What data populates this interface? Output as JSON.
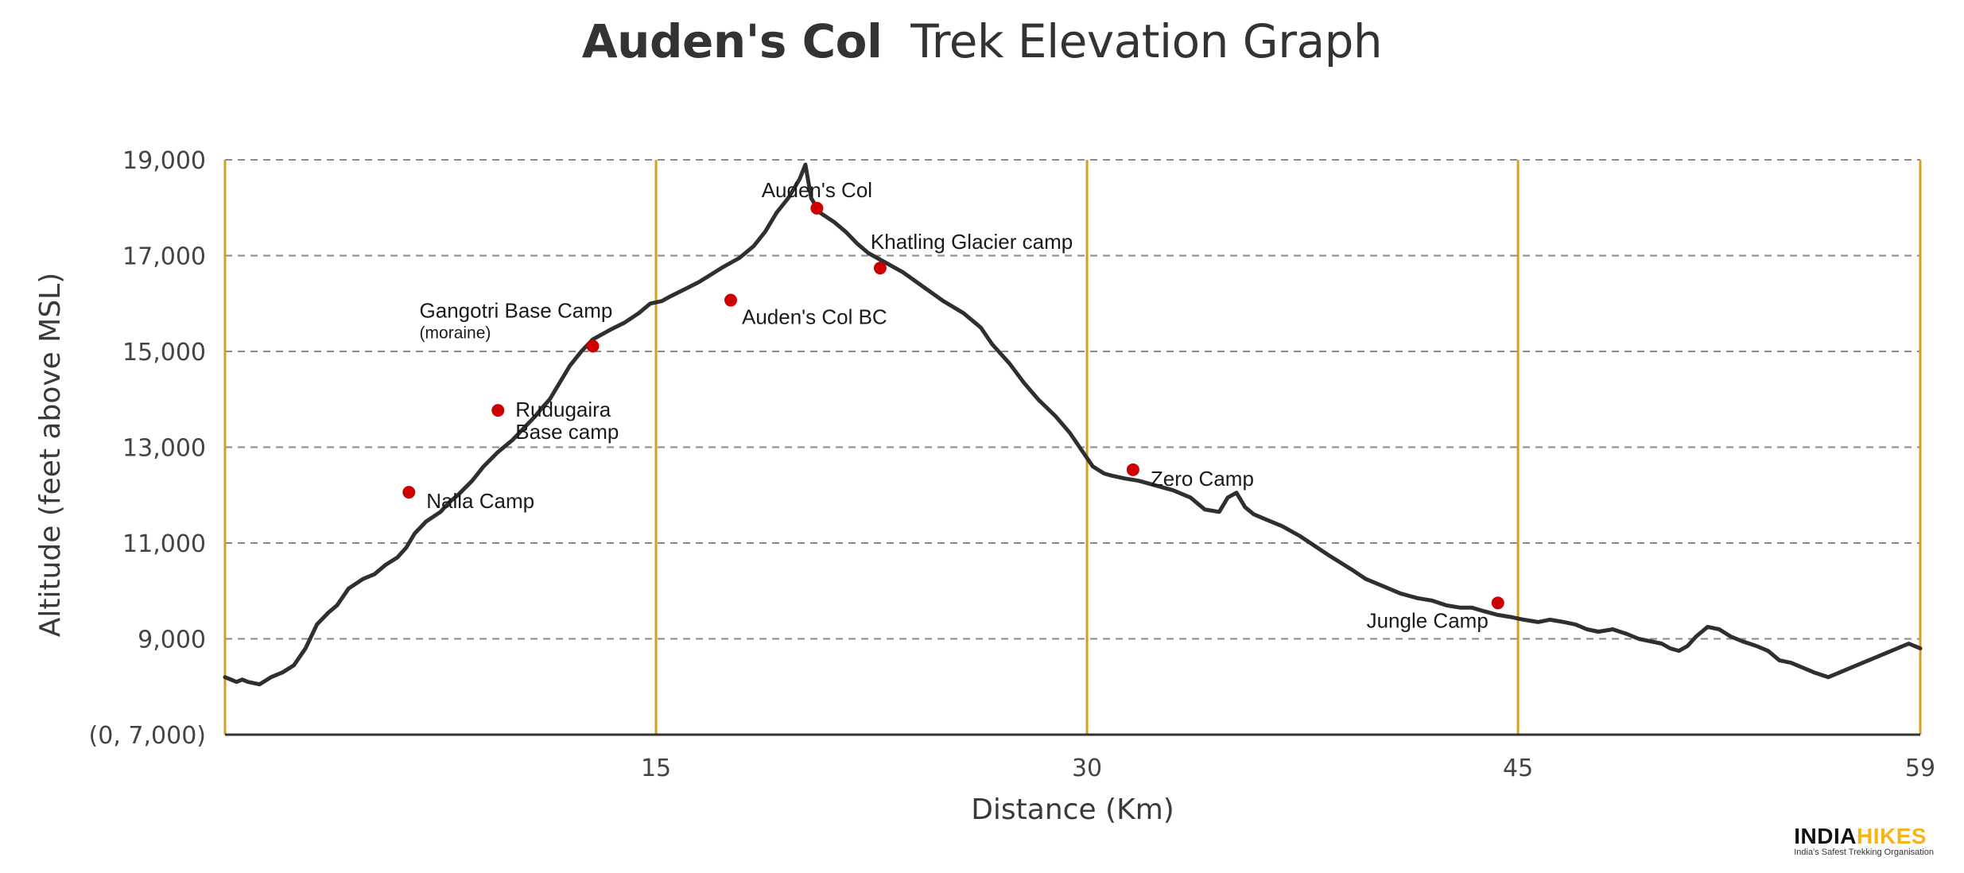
{
  "title": {
    "bold": "Auden's Col",
    "rest": "Trek Elevation Graph"
  },
  "chart_data": {
    "type": "line",
    "title": "Auden's Col  Trek Elevation Graph",
    "xlabel": "Distance (Km)",
    "ylabel": "Altitude (feet above MSL)",
    "xlim": [
      0,
      59
    ],
    "ylim": [
      7000,
      19000
    ],
    "x_ticks": [
      {
        "value": 15,
        "label": "15"
      },
      {
        "value": 30,
        "label": "30"
      },
      {
        "value": 45,
        "label": "45"
      },
      {
        "value": 59,
        "label": "59"
      }
    ],
    "y_ticks": [
      {
        "value": 7000,
        "label": "(0, 7,000)"
      },
      {
        "value": 9000,
        "label": "9,000"
      },
      {
        "value": 11000,
        "label": "11,000"
      },
      {
        "value": 13000,
        "label": "13,000"
      },
      {
        "value": 15000,
        "label": "15,000"
      },
      {
        "value": 17000,
        "label": "17,000"
      },
      {
        "value": 19000,
        "label": "19,000"
      }
    ],
    "grid": {
      "horizontal": "dashed",
      "vertical_at": [
        15,
        30,
        45,
        59
      ]
    },
    "colors": {
      "line": "#2f2f2f",
      "marker": "#cc0000",
      "grid": "#8a8a8a",
      "vertical": "#d4a020",
      "axis": "#333333"
    },
    "profile": {
      "x": [
        0,
        0.4,
        0.6,
        0.8,
        1.2,
        1.6,
        2.0,
        2.4,
        2.8,
        3.2,
        3.6,
        3.9,
        4.3,
        4.8,
        5.2,
        5.6,
        6.0,
        6.3,
        6.6,
        7.0,
        7.5,
        7.8,
        8.1,
        8.6,
        9.0,
        9.5,
        10.0,
        10.4,
        10.8,
        11.0,
        11.3,
        11.6,
        12.0,
        12.4,
        12.8,
        13.4,
        13.9,
        14.4,
        14.8,
        15.2,
        15.5,
        16.0,
        16.5,
        16.9,
        17.3,
        17.9,
        18.4,
        18.8,
        19.2,
        19.6,
        20.0,
        20.2,
        20.4,
        20.7,
        21.2,
        21.6,
        22.0,
        22.4,
        23.0,
        23.6,
        24.3,
        25.0,
        25.7,
        26.3,
        26.7,
        27.3,
        27.8,
        28.3,
        28.9,
        29.4,
        29.8,
        30.2,
        30.6,
        30.9,
        31.3,
        31.8,
        32.4,
        33.0,
        33.6,
        34.1,
        34.6,
        34.9,
        35.2,
        35.5,
        35.8,
        36.2,
        36.8,
        37.4,
        37.9,
        38.4,
        38.8,
        39.2,
        39.7,
        40.3,
        40.9,
        41.5,
        42.0,
        42.5,
        43.0,
        43.4,
        43.8,
        44.3,
        44.8,
        45.2,
        45.7,
        46.1,
        46.6,
        47.0,
        47.4,
        47.8,
        48.3,
        48.8,
        49.2,
        49.6,
        50.0,
        50.3,
        50.6,
        50.9,
        51.2,
        51.6,
        52.0,
        52.4,
        52.8,
        53.3,
        53.7,
        54.1,
        54.5,
        54.9,
        55.3,
        55.8,
        56.2,
        56.6,
        57.0,
        57.4,
        57.8,
        58.2,
        58.6,
        59.0
      ],
      "y": [
        8200,
        8100,
        8150,
        8100,
        8050,
        8200,
        8300,
        8450,
        8800,
        9300,
        9550,
        9700,
        10050,
        10250,
        10350,
        10550,
        10700,
        10900,
        11200,
        11450,
        11650,
        11850,
        12000,
        12300,
        12600,
        12900,
        13150,
        13400,
        13650,
        13800,
        14000,
        14300,
        14700,
        15000,
        15250,
        15450,
        15600,
        15800,
        16000,
        16050,
        16150,
        16300,
        16450,
        16600,
        16750,
        16950,
        17200,
        17500,
        17900,
        18200,
        18600,
        18900,
        18200,
        17900,
        17700,
        17500,
        17250,
        17050,
        16850,
        16650,
        16350,
        16050,
        15800,
        15500,
        15150,
        14750,
        14350,
        14000,
        13650,
        13300,
        12950,
        12600,
        12450,
        12400,
        12350,
        12300,
        12200,
        12100,
        11950,
        11700,
        11650,
        11950,
        12050,
        11750,
        11600,
        11500,
        11350,
        11150,
        10950,
        10750,
        10600,
        10450,
        10250,
        10100,
        9950,
        9850,
        9800,
        9700,
        9650,
        9650,
        9580,
        9500,
        9450,
        9400,
        9350,
        9400,
        9350,
        9300,
        9200,
        9150,
        9200,
        9100,
        9000,
        8950,
        8900,
        8800,
        8750,
        8850,
        9050,
        9250,
        9200,
        9050,
        8950,
        8850,
        8750,
        8550,
        8500,
        8400,
        8300,
        8200,
        8300,
        8400,
        8500,
        8600,
        8700,
        8800,
        8900,
        8800
      ],
      "note_units": "x in km, y in feet above MSL"
    },
    "camps": [
      {
        "name": "Nalla Camp",
        "x": 6.4,
        "y": 12060,
        "label_pos": "right"
      },
      {
        "name": "Rudugaira",
        "sub": "Base camp",
        "x": 9.5,
        "y": 13770,
        "label_pos": "right"
      },
      {
        "name": "Gangotri Base Camp",
        "sub": "(moraine)",
        "x": 12.8,
        "y": 15110,
        "label_pos": "above-left"
      },
      {
        "name": "Auden's Col BC",
        "x": 17.6,
        "y": 16070,
        "label_pos": "below-right"
      },
      {
        "name": "Auden's Col",
        "x": 20.6,
        "y": 17990,
        "label_pos": "above"
      },
      {
        "name": "Khatling Glacier camp",
        "x": 22.8,
        "y": 16740,
        "label_pos": "above-right"
      },
      {
        "name": "Zero Camp",
        "x": 31.6,
        "y": 12530,
        "label_pos": "right"
      },
      {
        "name": "Jungle Camp",
        "x": 44.3,
        "y": 9750,
        "label_pos": "below-left"
      }
    ]
  },
  "logo": {
    "brand_a": "INDIA",
    "brand_b": "HIKES",
    "tagline": "India's Safest Trekking Organisation"
  }
}
